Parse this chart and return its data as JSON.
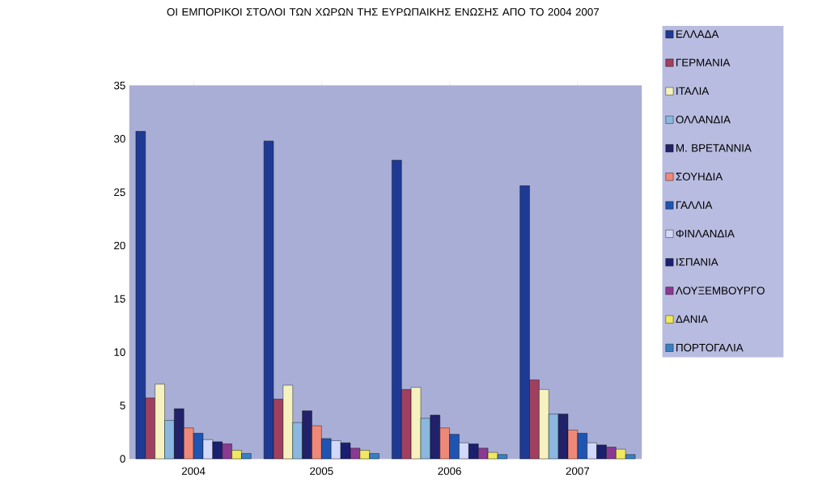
{
  "chart_data": {
    "type": "bar",
    "title": "ΟΙ ΕΜΠΟΡΙΚΟΙ ΣΤΟΛΟΙ ΤΩΝ ΧΩΡΩΝ ΤΗΣ ΕΥΡΩΠΑΙΚΗΣ ΕΝΩΣΗΣ ΑΠΟ ΤΟ 2004 2007",
    "categories": [
      "2004",
      "2005",
      "2006",
      "2007"
    ],
    "ylim": [
      0,
      35
    ],
    "yticks": [
      0,
      5,
      10,
      15,
      20,
      25,
      30,
      35
    ],
    "legend": "right",
    "series": [
      {
        "name": "ΕΛΛΑΔΑ",
        "color": "#1f3a93",
        "values": [
          30.7,
          29.8,
          28.0,
          25.6
        ]
      },
      {
        "name": "ΓΕΡΜΑΝΙΑ",
        "color": "#a0405f",
        "values": [
          5.7,
          5.6,
          6.5,
          7.4
        ]
      },
      {
        "name": "ΙΤΑΛΙΑ",
        "color": "#f5f2c0",
        "values": [
          7.0,
          6.9,
          6.7,
          6.5
        ]
      },
      {
        "name": "ΟΛΛΑΝΔΙΑ",
        "color": "#8ab8e0",
        "values": [
          3.6,
          3.4,
          3.8,
          4.2
        ]
      },
      {
        "name": "Μ. ΒΡΕΤΑΝΝΙΑ",
        "color": "#22226a",
        "values": [
          4.7,
          4.5,
          4.1,
          4.2
        ]
      },
      {
        "name": "ΣΟΥΗΔΙΑ",
        "color": "#f08878",
        "values": [
          2.9,
          3.1,
          2.9,
          2.7
        ]
      },
      {
        "name": "ΓΑΛΛΙΑ",
        "color": "#1f55b0",
        "values": [
          2.4,
          1.9,
          2.3,
          2.4
        ]
      },
      {
        "name": "ΦΙΝΛΑΝΔΙΑ",
        "color": "#d2d8fa",
        "values": [
          1.8,
          1.7,
          1.5,
          1.5
        ]
      },
      {
        "name": "ΙΣΠΑΝΙΑ",
        "color": "#1a2070",
        "values": [
          1.6,
          1.5,
          1.4,
          1.3
        ]
      },
      {
        "name": "ΛΟΥΞΕΜΒΟΥΡΓΟ",
        "color": "#8a3a90",
        "values": [
          1.4,
          1.0,
          1.0,
          1.1
        ]
      },
      {
        "name": "ΔΑΝΙΑ",
        "color": "#f0e860",
        "values": [
          0.8,
          0.8,
          0.6,
          0.9
        ]
      },
      {
        "name": "ΠΟΡΤΟΓΑΛΙΑ",
        "color": "#3a80c0",
        "values": [
          0.5,
          0.5,
          0.4,
          0.4
        ]
      }
    ]
  }
}
